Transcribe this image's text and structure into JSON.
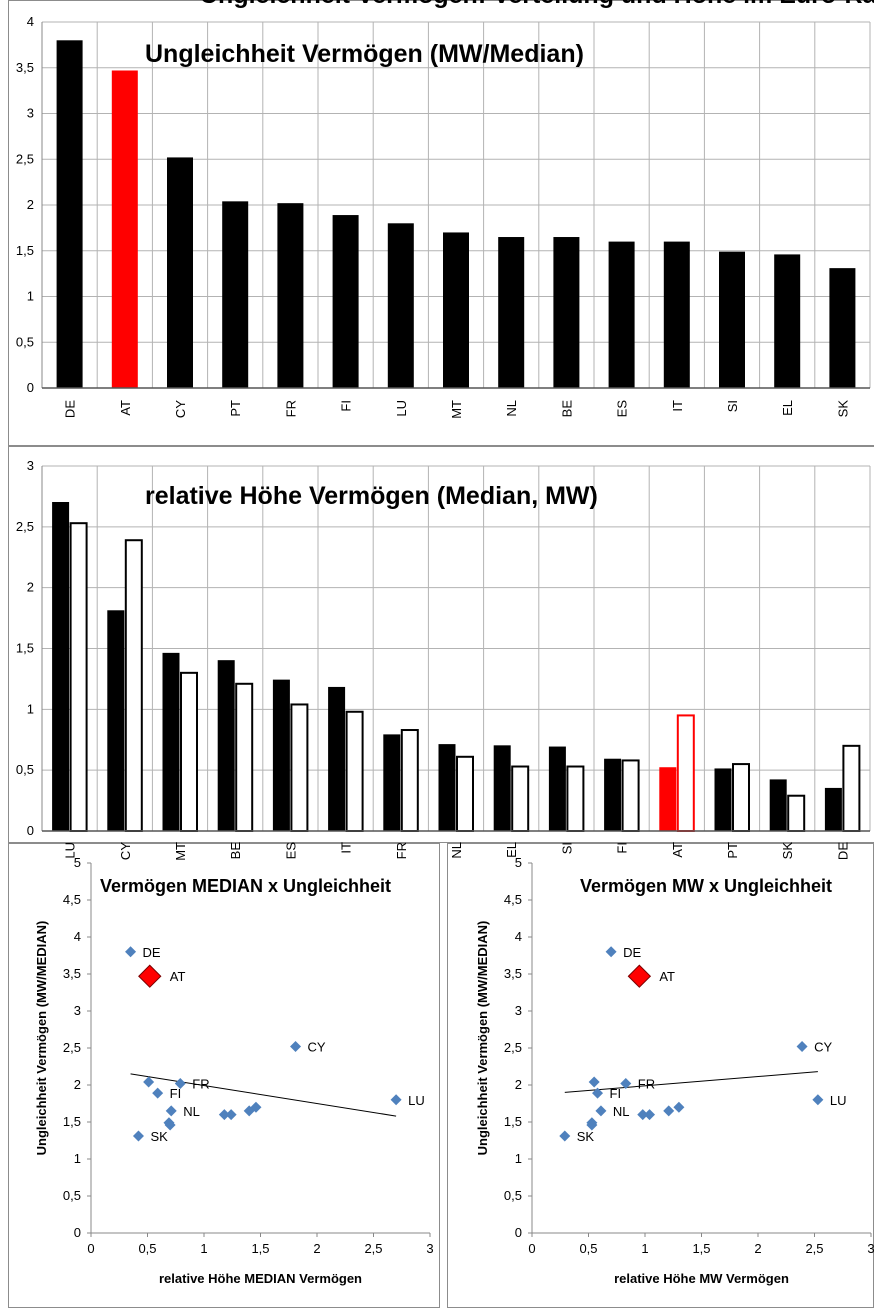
{
  "header_fragment": "Ungleichheit Vermögen: Verteilung und Höhe im Euro-Raum Vergleich (",
  "chart_data": [
    {
      "type": "bar",
      "title": "Ungleichheit Vermögen (MW/Median)",
      "categories": [
        "DE",
        "AT",
        "CY",
        "PT",
        "FR",
        "FI",
        "LU",
        "MT",
        "NL",
        "BE",
        "ES",
        "IT",
        "SI",
        "EL",
        "SK"
      ],
      "values": [
        3.8,
        3.47,
        2.52,
        2.04,
        2.02,
        1.89,
        1.8,
        1.7,
        1.65,
        1.65,
        1.6,
        1.6,
        1.49,
        1.46,
        1.31
      ],
      "highlight": "AT",
      "highlight_color": "#ff0000",
      "bar_color": "#000000",
      "ylim": [
        0,
        4
      ],
      "yticks": [
        "0",
        "0,5",
        "1",
        "1,5",
        "2",
        "2,5",
        "3",
        "3,5",
        "4"
      ],
      "grid": true
    },
    {
      "type": "bar",
      "title": "relative Höhe Vermögen (Median, MW)",
      "categories": [
        "LU",
        "CY",
        "MT",
        "BE",
        "ES",
        "IT",
        "FR",
        "NL",
        "EL",
        "SI",
        "FI",
        "AT",
        "PT",
        "SK",
        "DE"
      ],
      "series": [
        {
          "values": [
            2.7,
            1.81,
            1.46,
            1.4,
            1.24,
            1.18,
            0.79,
            0.71,
            0.7,
            0.69,
            0.59,
            0.52,
            0.51,
            0.42,
            0.35
          ],
          "fill": "#000000"
        },
        {
          "values": [
            2.53,
            2.39,
            1.3,
            1.21,
            1.04,
            0.98,
            0.83,
            0.61,
            0.53,
            0.53,
            0.58,
            0.95,
            0.55,
            0.29,
            0.7
          ],
          "fill": "#ffffff"
        }
      ],
      "highlight": "AT",
      "highlight_color": "#ff0000",
      "ylim": [
        0,
        3
      ],
      "yticks": [
        "0",
        "0,5",
        "1",
        "1,5",
        "2",
        "2,5",
        "3"
      ],
      "grid": true
    },
    {
      "type": "scatter",
      "title": "Vermögen MEDIAN x Ungleichheit",
      "xlabel": "relative Höhe MEDIAN Vermögen",
      "ylabel": "Ungleichheit Vermögen (MW/MEDIAN)",
      "xlim": [
        0,
        3
      ],
      "ylim": [
        0,
        5
      ],
      "xticks": [
        "0",
        "0,5",
        "1",
        "1,5",
        "2",
        "2,5",
        "3"
      ],
      "yticks": [
        "0",
        "0,5",
        "1",
        "1,5",
        "2",
        "2,5",
        "3",
        "3,5",
        "4",
        "4,5",
        "5"
      ],
      "points": [
        {
          "label": "DE",
          "x": 0.35,
          "y": 3.8
        },
        {
          "label": "AT",
          "x": 0.52,
          "y": 3.47,
          "highlight": true
        },
        {
          "label": "CY",
          "x": 1.81,
          "y": 2.52
        },
        {
          "label": "PT",
          "x": 0.51,
          "y": 2.04
        },
        {
          "label": "FR",
          "x": 0.79,
          "y": 2.02
        },
        {
          "label": "FI",
          "x": 0.59,
          "y": 1.89
        },
        {
          "label": "LU",
          "x": 2.7,
          "y": 1.8
        },
        {
          "label": "MT",
          "x": 1.46,
          "y": 1.7
        },
        {
          "label": "NL",
          "x": 0.71,
          "y": 1.65
        },
        {
          "label": "BE",
          "x": 1.4,
          "y": 1.65
        },
        {
          "label": "ES",
          "x": 1.24,
          "y": 1.6
        },
        {
          "label": "IT",
          "x": 1.18,
          "y": 1.6
        },
        {
          "label": "SI",
          "x": 0.69,
          "y": 1.49
        },
        {
          "label": "EL",
          "x": 0.7,
          "y": 1.46
        },
        {
          "label": "SK",
          "x": 0.42,
          "y": 1.31
        }
      ],
      "shown_labels": [
        "DE",
        "AT",
        "CY",
        "FR",
        "FI",
        "NL",
        "LU",
        "SK"
      ],
      "trendline": {
        "x": [
          0.35,
          2.7
        ],
        "y": [
          2.15,
          1.58
        ]
      },
      "marker_color": "#4f81bd",
      "highlight_color": "#ff0000"
    },
    {
      "type": "scatter",
      "title": "Vermögen MW x Ungleichheit",
      "xlabel": "relative Höhe MW Vermögen",
      "ylabel": "Ungleichheit Vermögen (MW/MEDIAN)",
      "xlim": [
        0,
        3
      ],
      "ylim": [
        0,
        5
      ],
      "xticks": [
        "0",
        "0,5",
        "1",
        "1,5",
        "2",
        "2,5",
        "3"
      ],
      "yticks": [
        "0",
        "0,5",
        "1",
        "1,5",
        "2",
        "2,5",
        "3",
        "3,5",
        "4",
        "4,5",
        "5"
      ],
      "points": [
        {
          "label": "DE",
          "x": 0.7,
          "y": 3.8
        },
        {
          "label": "AT",
          "x": 0.95,
          "y": 3.47,
          "highlight": true
        },
        {
          "label": "CY",
          "x": 2.39,
          "y": 2.52
        },
        {
          "label": "PT",
          "x": 0.55,
          "y": 2.04
        },
        {
          "label": "FR",
          "x": 0.83,
          "y": 2.02
        },
        {
          "label": "FI",
          "x": 0.58,
          "y": 1.89
        },
        {
          "label": "LU",
          "x": 2.53,
          "y": 1.8
        },
        {
          "label": "MT",
          "x": 1.3,
          "y": 1.7
        },
        {
          "label": "NL",
          "x": 0.61,
          "y": 1.65
        },
        {
          "label": "BE",
          "x": 1.21,
          "y": 1.65
        },
        {
          "label": "ES",
          "x": 1.04,
          "y": 1.6
        },
        {
          "label": "IT",
          "x": 0.98,
          "y": 1.6
        },
        {
          "label": "SI",
          "x": 0.53,
          "y": 1.49
        },
        {
          "label": "EL",
          "x": 0.53,
          "y": 1.46
        },
        {
          "label": "SK",
          "x": 0.29,
          "y": 1.31
        }
      ],
      "shown_labels": [
        "DE",
        "AT",
        "CY",
        "FR",
        "FI",
        "NL",
        "LU",
        "SK"
      ],
      "trendline": {
        "x": [
          0.29,
          2.53
        ],
        "y": [
          1.9,
          2.18
        ]
      },
      "marker_color": "#4f81bd",
      "highlight_color": "#ff0000"
    }
  ]
}
